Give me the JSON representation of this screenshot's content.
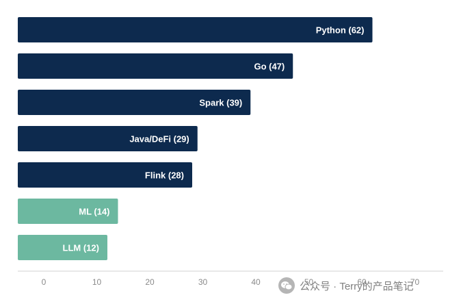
{
  "chart_data": {
    "type": "bar",
    "orientation": "horizontal",
    "categories": [
      "Python",
      "Go",
      "Spark",
      "Java/DeFi",
      "Flink",
      "ML",
      "LLM"
    ],
    "values": [
      62,
      47,
      39,
      29,
      28,
      14,
      12
    ],
    "bar_labels": [
      "Python (62)",
      "Go (47)",
      "Spark (39)",
      "Java/DeFi (29)",
      "Flink (28)",
      "ML (14)",
      "LLM (12)"
    ],
    "colors": [
      "#0d2a4e",
      "#0d2a4e",
      "#0d2a4e",
      "#0d2a4e",
      "#0d2a4e",
      "#6cb8a0",
      "#6cb8a0"
    ],
    "x_ticks": [
      0,
      10,
      20,
      30,
      40,
      50,
      60,
      70
    ],
    "xlim": [
      -5,
      75
    ],
    "title": "",
    "xlabel": "",
    "ylabel": "",
    "grid": false,
    "legend": "none"
  },
  "watermark": {
    "text": "公众号 · Terry的产品笔记",
    "icon": "wechat-icon"
  }
}
